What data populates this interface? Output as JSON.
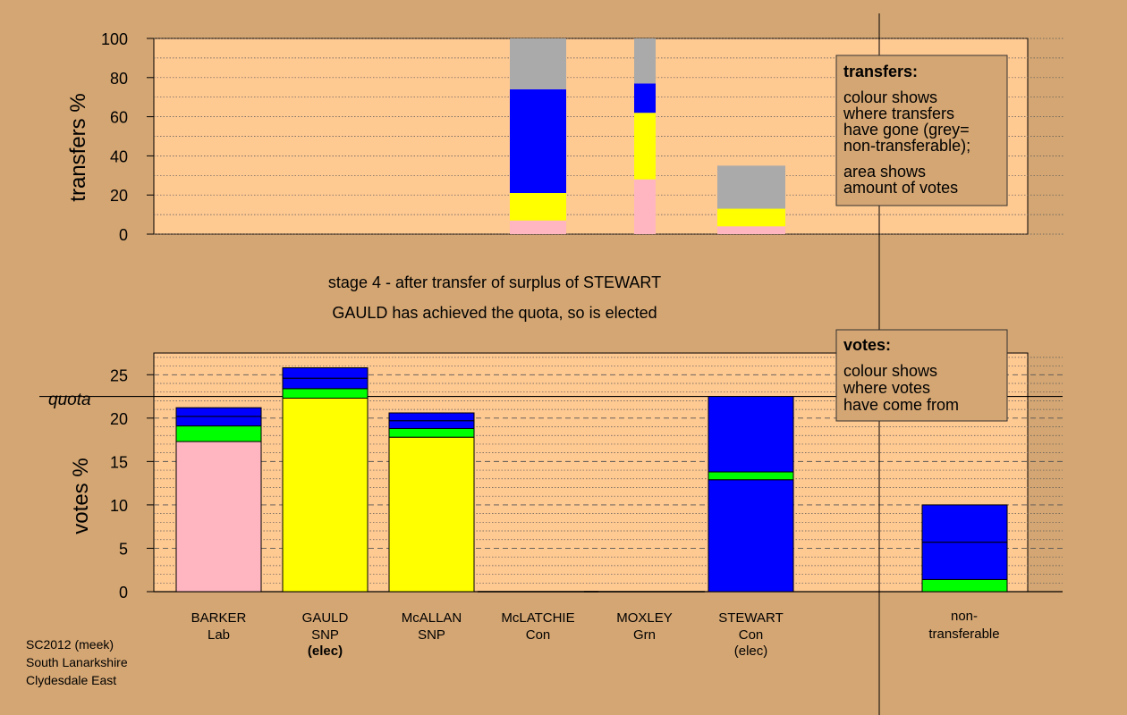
{
  "chart_data": [
    {
      "type": "bar",
      "stacked": true,
      "ylabel": "transfers %",
      "ylim": [
        0,
        100
      ],
      "yticks": [
        0,
        20,
        40,
        60,
        80,
        100
      ],
      "grid": "dotted horizontal",
      "bars": [
        {
          "candidate": "McLATCHIE",
          "segments": [
            {
              "color": "#ffb6c1",
              "value": 7
            },
            {
              "color": "#ffff00",
              "value": 14
            },
            {
              "color": "#0000ff",
              "value": 53
            },
            {
              "color": "#aaaaaa",
              "value": 26
            }
          ]
        },
        {
          "candidate": "MOXLEY",
          "segments": [
            {
              "color": "#ffb6c1",
              "value": 28
            },
            {
              "color": "#ffff00",
              "value": 34
            },
            {
              "color": "#0000ff",
              "value": 15
            },
            {
              "color": "#aaaaaa",
              "value": 23
            }
          ]
        },
        {
          "candidate": "STEWART",
          "segments": [
            {
              "color": "#ffb6c1",
              "value": 4
            },
            {
              "color": "#ffff00",
              "value": 9
            },
            {
              "color": "#aaaaaa",
              "value": 22
            }
          ]
        }
      ]
    },
    {
      "type": "bar",
      "stacked": true,
      "ylabel": "votes %",
      "ylim": [
        0,
        27.5
      ],
      "yticks": [
        0,
        5,
        10,
        15,
        20,
        25
      ],
      "quota": 22.5,
      "quota_label": "quota",
      "grid": "dashed/dotted horizontal",
      "candidates": [
        {
          "name": "BARKER",
          "party": "Lab",
          "status": "",
          "segments": [
            {
              "color": "#ffb6c1",
              "value": 17.3
            },
            {
              "color": "#00ff00",
              "value": 1.8
            },
            {
              "color": "#0000ff",
              "value": 1.1
            },
            {
              "color": "#0000ff",
              "value": 1.0
            }
          ]
        },
        {
          "name": "GAULD",
          "party": "SNP",
          "status": "(elec)",
          "segments": [
            {
              "color": "#ffff00",
              "value": 22.3
            },
            {
              "color": "#00ff00",
              "value": 1.1
            },
            {
              "color": "#0000ff",
              "value": 1.2
            },
            {
              "color": "#0000ff",
              "value": 1.2
            }
          ]
        },
        {
          "name": "McALLAN",
          "party": "SNP",
          "status": "",
          "segments": [
            {
              "color": "#ffff00",
              "value": 17.8
            },
            {
              "color": "#00ff00",
              "value": 1.0
            },
            {
              "color": "#0000ff",
              "value": 0.9
            },
            {
              "color": "#0000ff",
              "value": 0.9
            }
          ]
        },
        {
          "name": "McLATCHIE",
          "party": "Con",
          "status": "",
          "segments": []
        },
        {
          "name": "MOXLEY",
          "party": "Grn",
          "status": "",
          "segments": []
        },
        {
          "name": "STEWART",
          "party": "Con",
          "status": "(elec)",
          "segments": [
            {
              "color": "#0000ff",
              "value": 12.9
            },
            {
              "color": "#00ff00",
              "value": 0.9
            },
            {
              "color": "#0000ff",
              "value": 8.7
            }
          ]
        }
      ],
      "nontransferable": {
        "label": "non-\ntransferable",
        "segments": [
          {
            "color": "#00ff00",
            "value": 1.4
          },
          {
            "color": "#0000ff",
            "value": 4.3
          },
          {
            "color": "#0000ff",
            "value": 4.3
          }
        ]
      }
    }
  ],
  "transfers_box": {
    "title": "transfers:",
    "lines": [
      "colour shows",
      "where transfers",
      "have gone (grey=",
      "non-transferable);"
    ],
    "lines2": [
      "area shows",
      "amount of votes"
    ]
  },
  "votes_box": {
    "title": "votes:",
    "lines": [
      "colour shows",
      "where votes",
      "have come from"
    ]
  },
  "stage_line1": "stage 4 - after transfer of surplus of STEWART",
  "stage_line2": "GAULD has achieved the quota, so is elected",
  "footer": [
    "SC2012 (meek)",
    "South Lanarkshire",
    "Clydesdale East"
  ],
  "colors": {
    "panel": "#ffc992",
    "background": "#d4a673"
  }
}
